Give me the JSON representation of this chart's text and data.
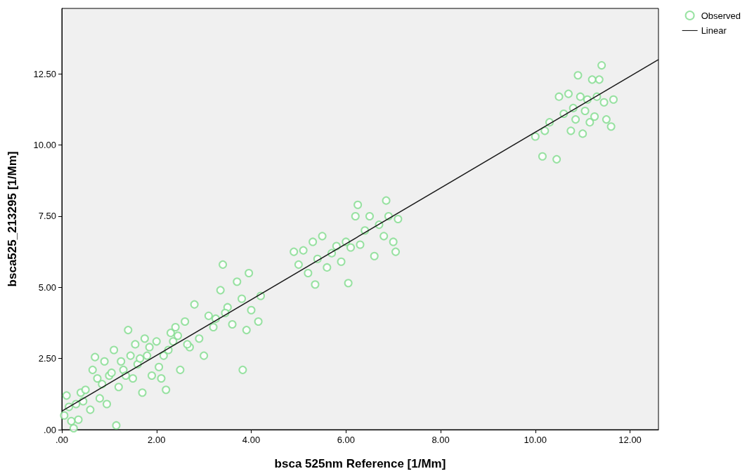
{
  "chart_data": {
    "type": "scatter",
    "xlabel": "bsca 525nm Reference [1/Mm]",
    "ylabel": "bsca525_213295 [1/Mm]",
    "xlim": [
      0,
      12.6
    ],
    "ylim": [
      0,
      14.8
    ],
    "xticks": [
      {
        "value": 0,
        "label": ".00"
      },
      {
        "value": 2,
        "label": "2.00"
      },
      {
        "value": 4,
        "label": "4.00"
      },
      {
        "value": 6,
        "label": "6.00"
      },
      {
        "value": 8,
        "label": "8.00"
      },
      {
        "value": 10,
        "label": "10.00"
      },
      {
        "value": 12,
        "label": "12.00"
      }
    ],
    "yticks": [
      {
        "value": 0,
        "label": ".00"
      },
      {
        "value": 2.5,
        "label": "2.50"
      },
      {
        "value": 5,
        "label": "5.00"
      },
      {
        "value": 7.5,
        "label": "7.50"
      },
      {
        "value": 10,
        "label": "10.00"
      },
      {
        "value": 12.5,
        "label": "12.50"
      }
    ],
    "grid": false,
    "legend": "top right",
    "series": [
      {
        "name": "Observed",
        "marker": "circle",
        "color": "#7fdc8c",
        "x": [
          0.05,
          0.1,
          0.2,
          0.25,
          0.3,
          0.35,
          0.4,
          0.5,
          0.6,
          0.65,
          0.7,
          0.75,
          0.8,
          0.9,
          0.95,
          1.0,
          1.1,
          1.15,
          1.2,
          1.3,
          1.4,
          1.45,
          1.5,
          1.55,
          1.6,
          1.7,
          1.75,
          1.8,
          1.9,
          2.0,
          2.05,
          2.1,
          2.2,
          2.25,
          2.3,
          2.4,
          2.5,
          2.6,
          2.7,
          2.8,
          2.9,
          3.0,
          3.1,
          3.2,
          3.35,
          3.4,
          3.5,
          3.6,
          3.7,
          3.8,
          3.82,
          3.9,
          3.95,
          4.0,
          4.15,
          4.2,
          0.15,
          0.45,
          0.85,
          1.05,
          1.25,
          1.35,
          1.65,
          1.85,
          2.15,
          2.35,
          2.45,
          2.65,
          3.25,
          3.45,
          4.9,
          5.0,
          5.1,
          5.2,
          5.3,
          5.35,
          5.4,
          5.5,
          5.6,
          5.7,
          5.8,
          5.9,
          6.0,
          6.05,
          6.1,
          6.2,
          6.25,
          6.3,
          6.4,
          6.5,
          6.6,
          6.7,
          6.8,
          6.85,
          6.9,
          7.0,
          7.05,
          7.1,
          10.0,
          10.15,
          10.2,
          10.3,
          10.45,
          10.5,
          10.6,
          10.7,
          10.75,
          10.8,
          10.85,
          10.9,
          10.95,
          11.0,
          11.05,
          11.1,
          11.15,
          11.2,
          11.25,
          11.3,
          11.35,
          11.4,
          11.45,
          11.5,
          11.6,
          11.65
        ],
        "values": [
          0.5,
          1.2,
          0.3,
          0.05,
          0.9,
          0.35,
          1.3,
          1.4,
          0.7,
          2.1,
          2.55,
          1.8,
          1.1,
          2.4,
          0.9,
          1.9,
          2.8,
          0.15,
          1.5,
          2.1,
          3.5,
          2.6,
          1.8,
          3.0,
          2.3,
          1.3,
          3.2,
          2.6,
          1.9,
          3.1,
          2.2,
          1.8,
          1.4,
          2.8,
          3.4,
          3.6,
          2.1,
          3.8,
          2.9,
          4.4,
          3.2,
          2.6,
          4.0,
          3.6,
          4.9,
          5.8,
          4.3,
          3.7,
          5.2,
          4.6,
          2.1,
          3.5,
          5.5,
          4.2,
          3.8,
          4.7,
          0.8,
          1.0,
          1.6,
          2.0,
          2.4,
          1.9,
          2.5,
          2.9,
          2.6,
          3.1,
          3.3,
          3.0,
          3.9,
          4.1,
          6.25,
          5.8,
          6.3,
          5.5,
          6.6,
          5.1,
          6.0,
          6.8,
          5.7,
          6.2,
          6.45,
          5.9,
          6.6,
          5.15,
          6.4,
          7.5,
          7.9,
          6.5,
          7.0,
          7.5,
          6.1,
          7.2,
          6.8,
          8.05,
          7.5,
          6.6,
          6.25,
          7.4,
          10.3,
          9.6,
          10.5,
          10.8,
          9.5,
          11.7,
          11.1,
          11.8,
          10.5,
          11.3,
          10.9,
          12.45,
          11.7,
          10.4,
          11.2,
          11.6,
          10.8,
          12.3,
          11.0,
          11.7,
          12.3,
          12.8,
          11.5,
          10.9,
          10.65,
          11.6
        ]
      },
      {
        "name": "Linear",
        "type": "line",
        "marker": "none",
        "line_style": "solid",
        "color": "#1a1a1a",
        "x": [
          0,
          12.6
        ],
        "values": [
          0.65,
          13.0
        ]
      }
    ]
  }
}
